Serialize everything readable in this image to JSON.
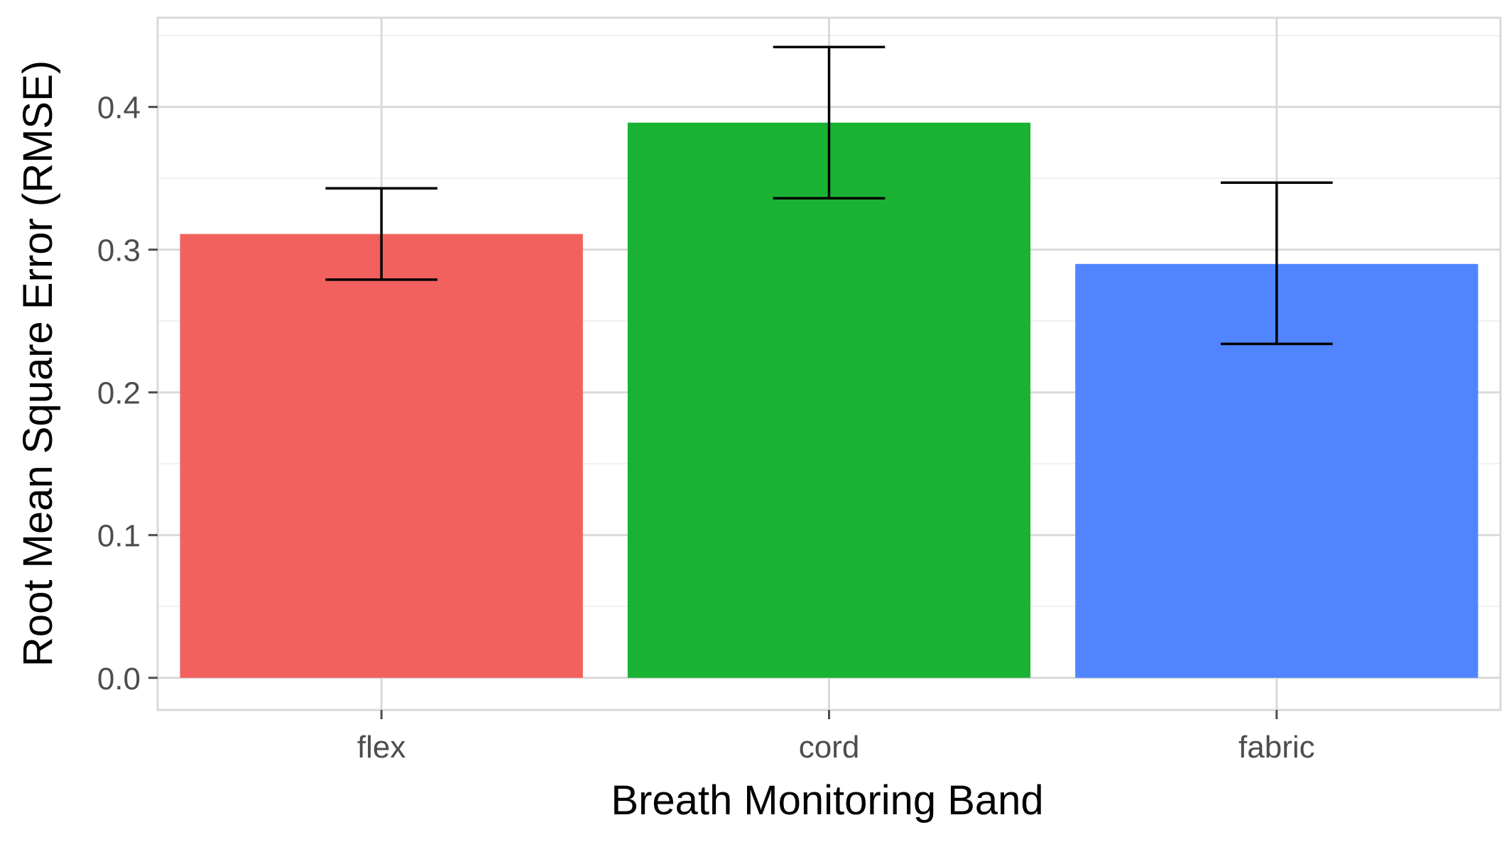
{
  "chart_data": {
    "type": "bar",
    "title": "",
    "xlabel": "Breath Monitoring Band",
    "ylabel": "Root Mean Square Error (RMSE)",
    "categories": [
      "flex",
      "cord",
      "fabric"
    ],
    "values": [
      0.311,
      0.389,
      0.29
    ],
    "error_low": [
      0.279,
      0.336,
      0.234
    ],
    "error_high": [
      0.343,
      0.442,
      0.347
    ],
    "colors": [
      "#F2615D",
      "#1AB232",
      "#5085FF"
    ],
    "ylim": [
      -0.0225,
      0.4625
    ],
    "yticks": [
      0.0,
      0.1,
      0.2,
      0.3,
      0.4
    ],
    "ytick_labels": [
      "0.0",
      "0.1",
      "0.2",
      "0.3",
      "0.4"
    ],
    "grid": true,
    "legend": "none"
  }
}
